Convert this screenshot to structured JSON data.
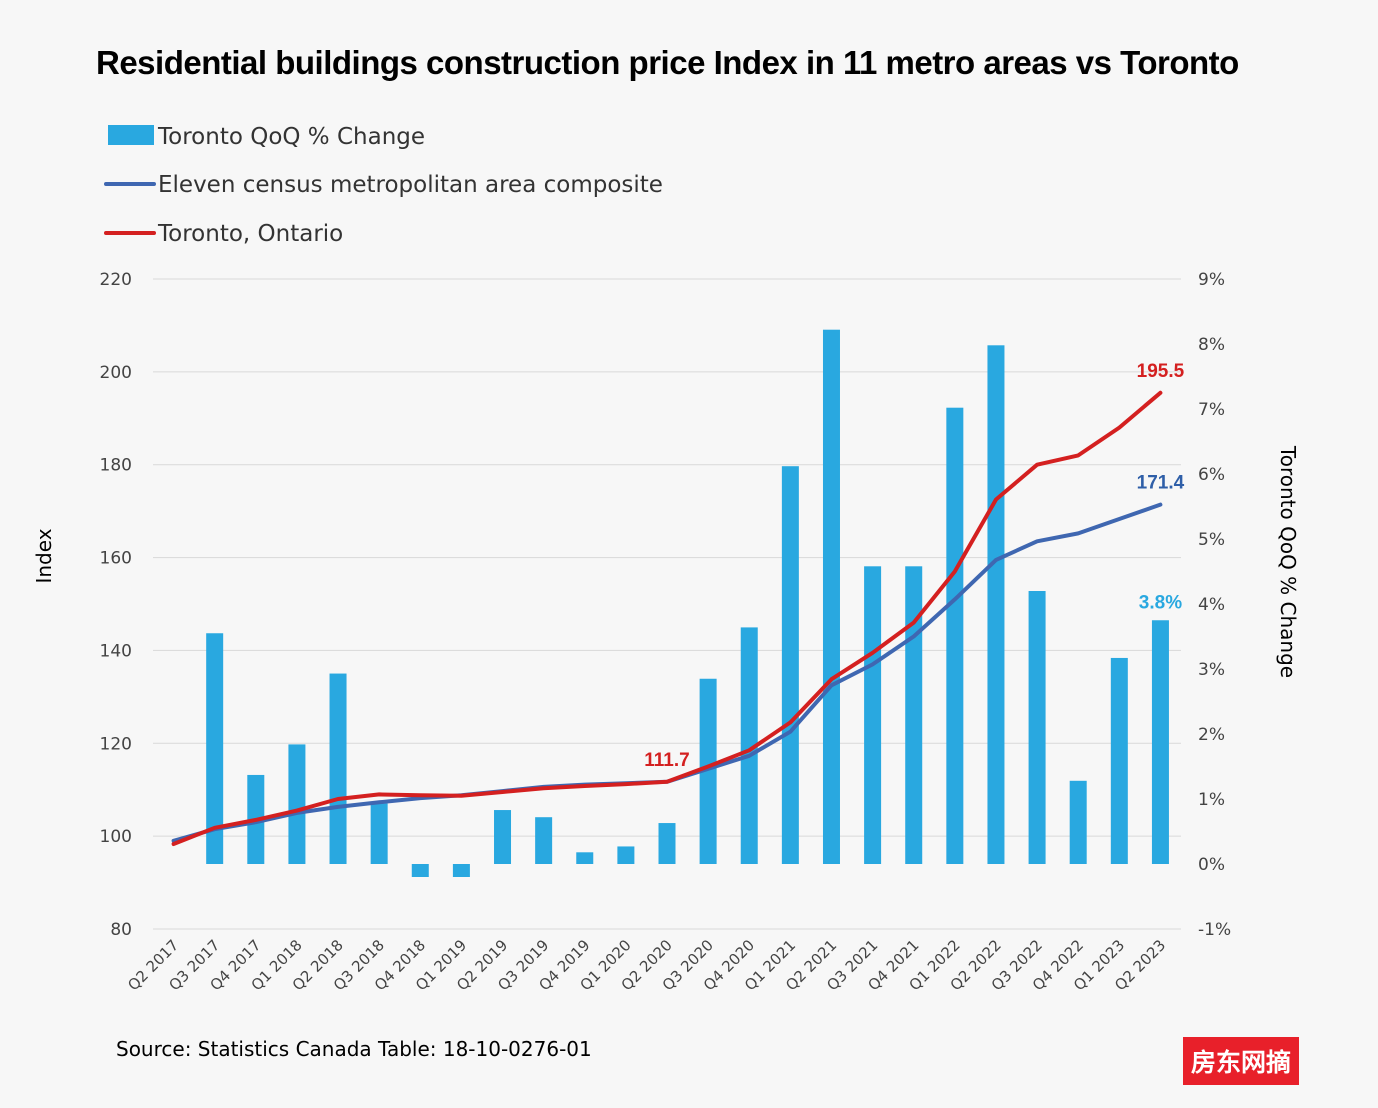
{
  "chart_data": {
    "type": "bar",
    "title": "Residential buildings construction price Index in 11 metro areas vs Toronto",
    "categories": [
      "Q2 2017",
      "Q3 2017",
      "Q4 2017",
      "Q1 2018",
      "Q2 2018",
      "Q3 2018",
      "Q4 2018",
      "Q1 2019",
      "Q2 2019",
      "Q3 2019",
      "Q4 2019",
      "Q1 2020",
      "Q2 2020",
      "Q3 2020",
      "Q4 2020",
      "Q1 2021",
      "Q2 2021",
      "Q3 2021",
      "Q4 2021",
      "Q1 2022",
      "Q2 2022",
      "Q3 2022",
      "Q4 2022",
      "Q1 2023",
      "Q2 2023"
    ],
    "y_left": {
      "label": "Index",
      "min": 80,
      "max": 220,
      "ticks": [
        "80",
        "100",
        "120",
        "140",
        "160",
        "180",
        "200",
        "220"
      ]
    },
    "y_right": {
      "label": "Toronto QoQ % Change",
      "min": -1,
      "max": 9,
      "ticks": [
        "-1%",
        "0%",
        "1%",
        "2%",
        "3%",
        "4%",
        "5%",
        "6%",
        "7%",
        "8%",
        "9%"
      ]
    },
    "series": [
      {
        "name": "Toronto QoQ % Change",
        "kind": "bar",
        "axis": "right",
        "color": "#29a8e0",
        "values": [
          null,
          3.55,
          1.37,
          1.84,
          2.93,
          0.93,
          -0.2,
          -0.2,
          0.83,
          0.72,
          0.18,
          0.27,
          0.63,
          2.85,
          3.64,
          6.12,
          8.22,
          4.58,
          4.58,
          7.02,
          7.98,
          4.2,
          1.28,
          3.17,
          3.75
        ]
      },
      {
        "name": "Eleven census metropolitan area composite",
        "kind": "line",
        "axis": "left",
        "color": "#3f67b1",
        "values": [
          99.0,
          101.5,
          103.0,
          105.0,
          106.3,
          107.3,
          108.2,
          108.8,
          109.7,
          110.6,
          111.1,
          111.4,
          111.7,
          114.5,
          117.3,
          122.5,
          132.5,
          137.0,
          143.0,
          151.0,
          159.5,
          163.5,
          165.2,
          168.3,
          171.4
        ]
      },
      {
        "name": "Toronto, Ontario",
        "kind": "line",
        "axis": "left",
        "color": "#d42020",
        "values": [
          98.3,
          101.8,
          103.5,
          105.5,
          108.0,
          109.0,
          108.8,
          108.7,
          109.5,
          110.3,
          110.8,
          111.2,
          111.7,
          115.0,
          118.5,
          124.5,
          133.8,
          139.5,
          146.0,
          157.0,
          172.5,
          180.0,
          182.0,
          188.0,
          195.5
        ]
      }
    ],
    "annotations": [
      {
        "text": "111.7",
        "category": "Q2 2020",
        "series": "Toronto, Ontario",
        "color": "#d42020"
      },
      {
        "text": "195.5",
        "category": "Q2 2023",
        "series": "Toronto, Ontario",
        "color": "#d42020"
      },
      {
        "text": "171.4",
        "category": "Q2 2023",
        "series": "Eleven census metropolitan area composite",
        "color": "#2f5fa8"
      },
      {
        "text": "3.8%",
        "category": "Q2 2023",
        "series": "Toronto QoQ % Change",
        "color": "#29a8e0"
      }
    ],
    "legend": [
      "Toronto QoQ % Change",
      "Eleven census metropolitan area composite",
      "Toronto, Ontario"
    ],
    "legend_position": "top-left",
    "grid": true
  },
  "source": "Source: Statistics Canada Table: 18-10-0276-01",
  "watermark": "房东网摘",
  "colors": {
    "grid": "#d9d9d9",
    "watermark_bg": "#e8202a"
  }
}
